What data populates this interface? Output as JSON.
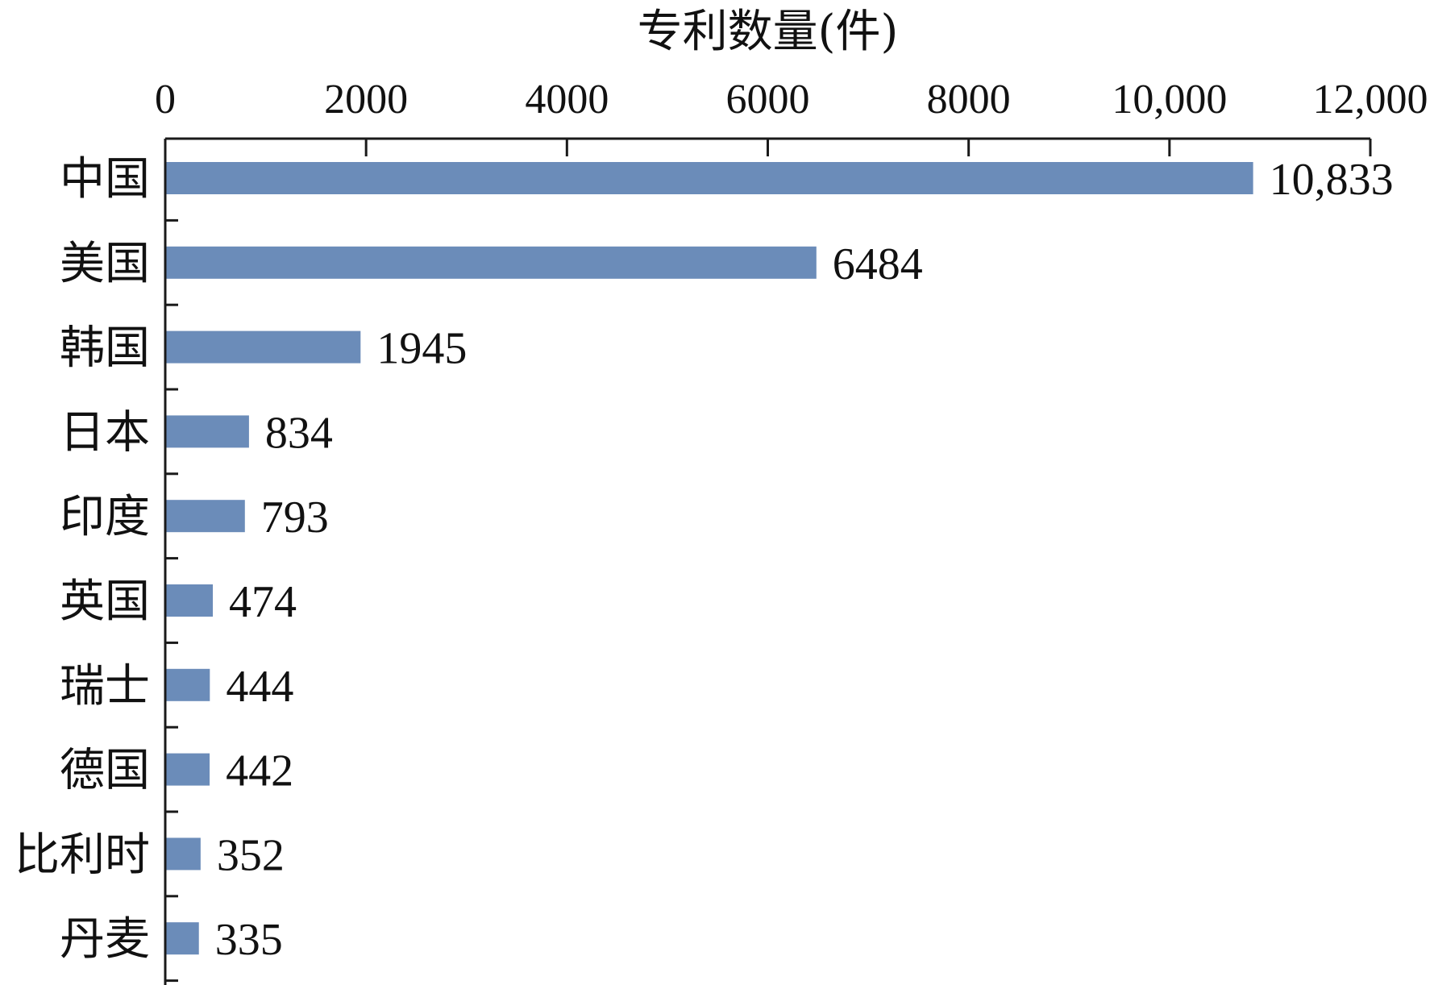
{
  "chart_data": {
    "type": "bar",
    "orientation": "horizontal",
    "xlabel": "专利数量(件)",
    "ylabel": "",
    "xlim": [
      0,
      12000
    ],
    "x_axis_position": "top",
    "x_ticks": [
      0,
      2000,
      4000,
      6000,
      8000,
      10000,
      12000
    ],
    "x_tick_labels": [
      "0",
      "2000",
      "4000",
      "6000",
      "8000",
      "10,000",
      "12,000"
    ],
    "categories": [
      "中国",
      "美国",
      "韩国",
      "日本",
      "印度",
      "英国",
      "瑞士",
      "德国",
      "比利时",
      "丹麦"
    ],
    "values": [
      10833,
      6484,
      1945,
      834,
      793,
      474,
      444,
      442,
      352,
      335
    ],
    "value_labels": [
      "10,833",
      "6484",
      "1945",
      "834",
      "793",
      "474",
      "444",
      "442",
      "352",
      "335"
    ],
    "bar_color": "#6b8cb9",
    "grid": false,
    "legend": "none"
  }
}
